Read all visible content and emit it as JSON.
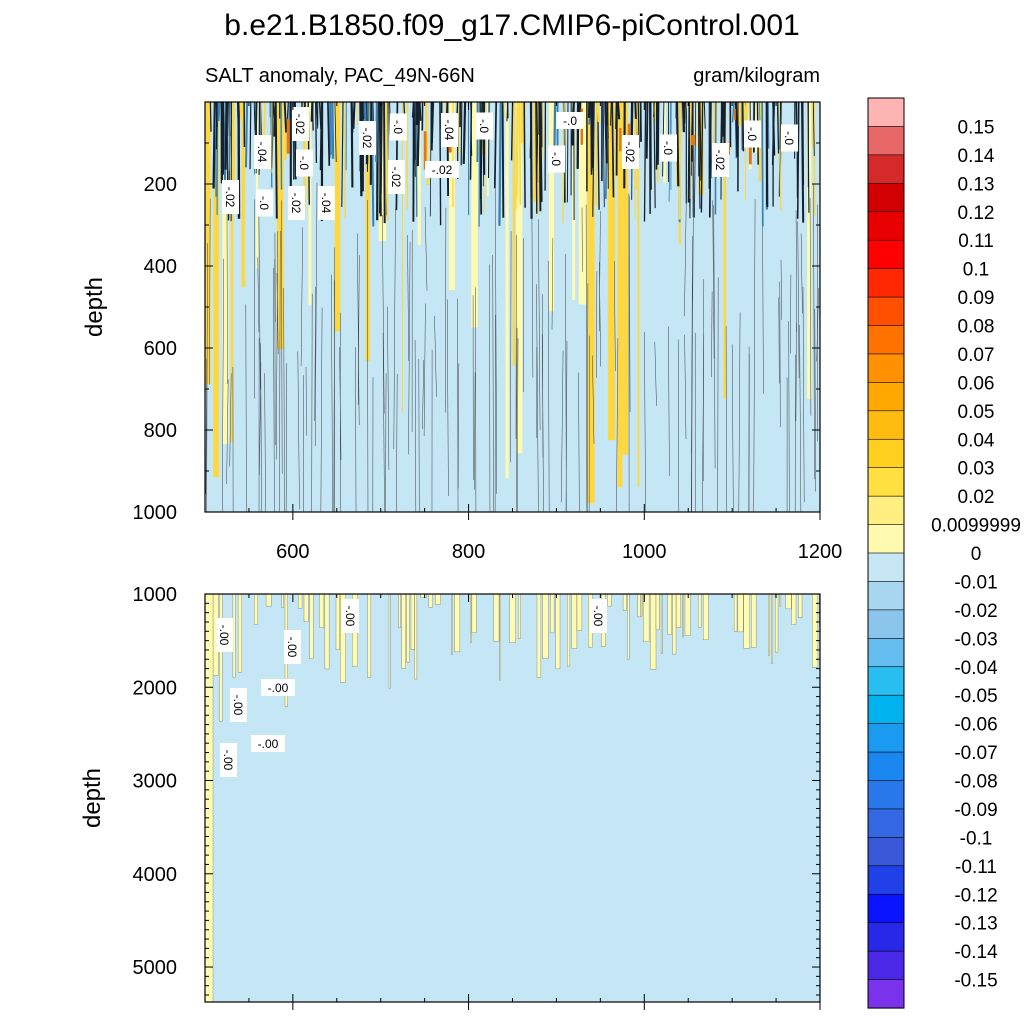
{
  "chart_data": {
    "type": "heatmap",
    "title": "b.e21.B1850.f09_g17.CMIP6-piControl.001",
    "subtitle_left": "SALT anomaly, PAC_49N-66N",
    "subtitle_right": "gram/kilogram",
    "x_range": [
      500,
      1200
    ],
    "x_ticks": [
      600,
      800,
      1000,
      1200
    ],
    "panels": [
      {
        "name": "upper",
        "ylabel": "depth",
        "y_range": [
          0,
          1000
        ],
        "y_reversed": true,
        "y_ticks": [
          200,
          400,
          600,
          800,
          1000
        ],
        "x_tick_labels_shown": true,
        "contour_labels": [
          "-.02",
          "-.04",
          "-.0",
          "-.02",
          "-.0",
          "-.02",
          "-.04",
          "-.02",
          "-.0",
          "-.02",
          "-.04",
          "-.0",
          "-.02",
          "-.0",
          "-.0",
          "-.02",
          "-.0",
          "-.0",
          "-.0",
          "-.02"
        ]
      },
      {
        "name": "lower",
        "ylabel": "depth",
        "y_range": [
          1000,
          5375
        ],
        "y_reversed": true,
        "y_ticks": [
          1000,
          2000,
          3000,
          4000,
          5000
        ],
        "x_tick_labels_shown": false,
        "contour_labels": [
          "-.00",
          "-.00",
          "-.00",
          "-.00",
          "-.00",
          "-.00",
          "-.00",
          "-.00"
        ]
      }
    ],
    "colorbar": {
      "labels": [
        "0.15",
        "0.14",
        "0.13",
        "0.12",
        "0.11",
        "0.1",
        "0.09",
        "0.08",
        "0.07",
        "0.06",
        "0.05",
        "0.04",
        "0.03",
        "0.02",
        "0.0099999",
        "0",
        "-0.01",
        "-0.02",
        "-0.03",
        "-0.04",
        "-0.05",
        "-0.06",
        "-0.07",
        "-0.08",
        "-0.09",
        "-0.1",
        "-0.11",
        "-0.12",
        "-0.13",
        "-0.14",
        "-0.15"
      ],
      "colors": [
        "#ffb4b4",
        "#e86868",
        "#d42a2a",
        "#d20000",
        "#e80000",
        "#ff0000",
        "#ff2800",
        "#ff5000",
        "#ff7200",
        "#ff9000",
        "#ffa800",
        "#ffbc10",
        "#ffcf20",
        "#ffe040",
        "#ffee80",
        "#fffab0",
        "#c6e6f4",
        "#a8d6f0",
        "#8ac6ec",
        "#64bcef",
        "#28bef0",
        "#00b2ee",
        "#1a9af0",
        "#1a86f0",
        "#2878ec",
        "#3468e2",
        "#3858d8",
        "#2040e8",
        "#0a14ff",
        "#2828e8",
        "#4a28e8",
        "#7a32ea"
      ]
    },
    "fill_colors": {
      "background_negative": "#c4e6f5",
      "positive_small": "#fffbb0",
      "positive_medium": "#ffd840",
      "near_surface_dark": "#14202e",
      "positive_large": "#e07818"
    },
    "grid": false
  }
}
